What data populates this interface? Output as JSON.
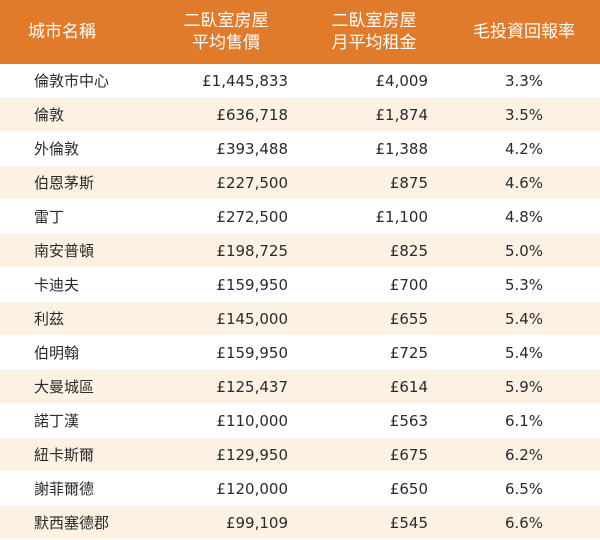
{
  "colors": {
    "header_bg": "#e07b2c",
    "stripe": "#fdf1e3"
  },
  "header": {
    "city": "城市名稱",
    "price_line1": "二臥室房屋",
    "price_line2": "平均售價",
    "rent_line1": "二臥室房屋",
    "rent_line2": "月平均租金",
    "yield": "毛投資回報率"
  },
  "chart_data": {
    "type": "table",
    "columns": [
      "城市名稱",
      "二臥室房屋 平均售價",
      "二臥室房屋 月平均租金",
      "毛投資回報率"
    ],
    "rows": [
      [
        "倫敦市中心",
        "£1,445,833",
        "£4,009",
        "3.3%"
      ],
      [
        "倫敦",
        "£636,718",
        "£1,874",
        "3.5%"
      ],
      [
        "外倫敦",
        "£393,488",
        "£1,388",
        "4.2%"
      ],
      [
        "伯恩茅斯",
        "£227,500",
        "£875",
        "4.6%"
      ],
      [
        "雷丁",
        "£272,500",
        "£1,100",
        "4.8%"
      ],
      [
        "南安普頓",
        "£198,725",
        "£825",
        "5.0%"
      ],
      [
        "卡迪夫",
        "£159,950",
        "£700",
        "5.3%"
      ],
      [
        "利茲",
        "£145,000",
        "£655",
        "5.4%"
      ],
      [
        "伯明翰",
        "£159,950",
        "£725",
        "5.4%"
      ],
      [
        "大曼城區",
        "£125,437",
        "£614",
        "5.9%"
      ],
      [
        "諾丁漢",
        "£110,000",
        "£563",
        "6.1%"
      ],
      [
        "紐卡斯爾",
        "£129,950",
        "£675",
        "6.2%"
      ],
      [
        "謝菲爾德",
        "£120,000",
        "£650",
        "6.5%"
      ],
      [
        "默西塞德郡",
        "£99,109",
        "£545",
        "6.6%"
      ]
    ]
  }
}
